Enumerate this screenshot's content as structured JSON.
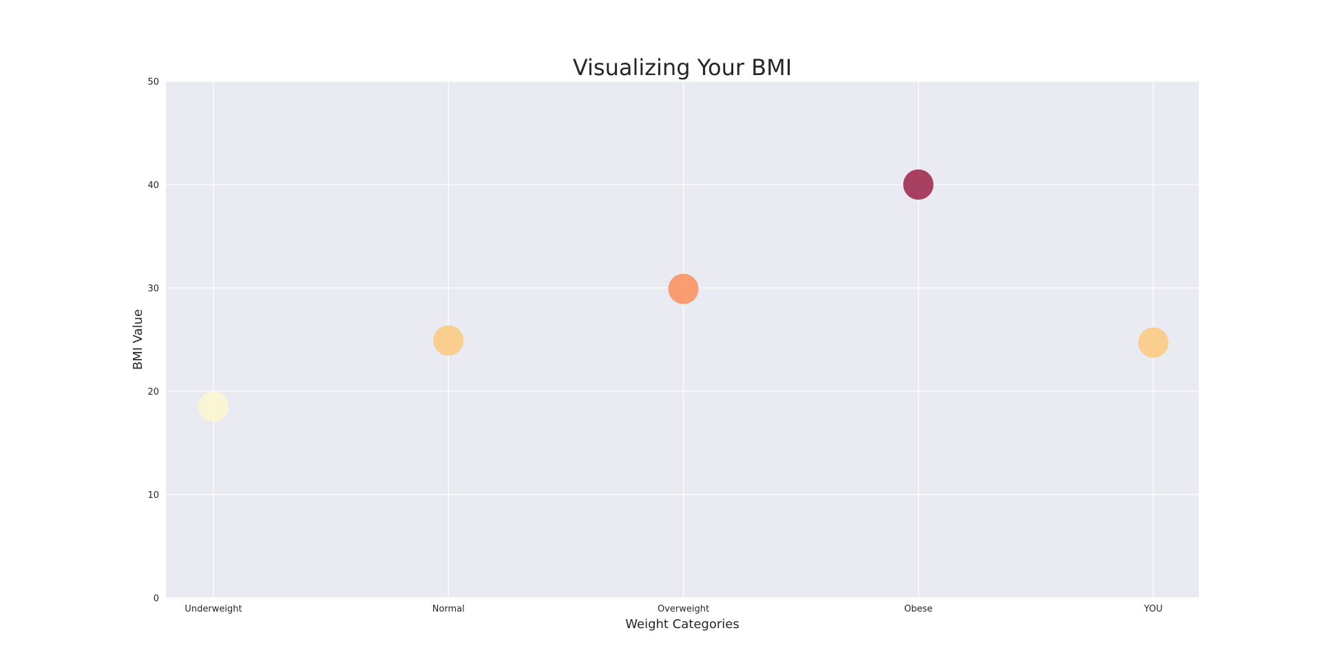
{
  "chart_data": {
    "type": "scatter",
    "title": "Visualizing Your BMI",
    "xlabel": "Weight Categories",
    "ylabel": "BMI Value",
    "categories": [
      "Underweight",
      "Normal",
      "Overweight",
      "Obese",
      "YOU"
    ],
    "values": [
      18.5,
      24.9,
      29.9,
      40.0,
      24.7
    ],
    "point_colors": [
      "#fbf7d0",
      "#fbc97c",
      "#fa8f5c",
      "#9b2148",
      "#fbc97c"
    ],
    "ylim": [
      0,
      50
    ],
    "yticks": [
      0,
      10,
      20,
      30,
      40,
      50
    ],
    "grid": true,
    "background": "#eaeaf2",
    "legend": "none"
  }
}
